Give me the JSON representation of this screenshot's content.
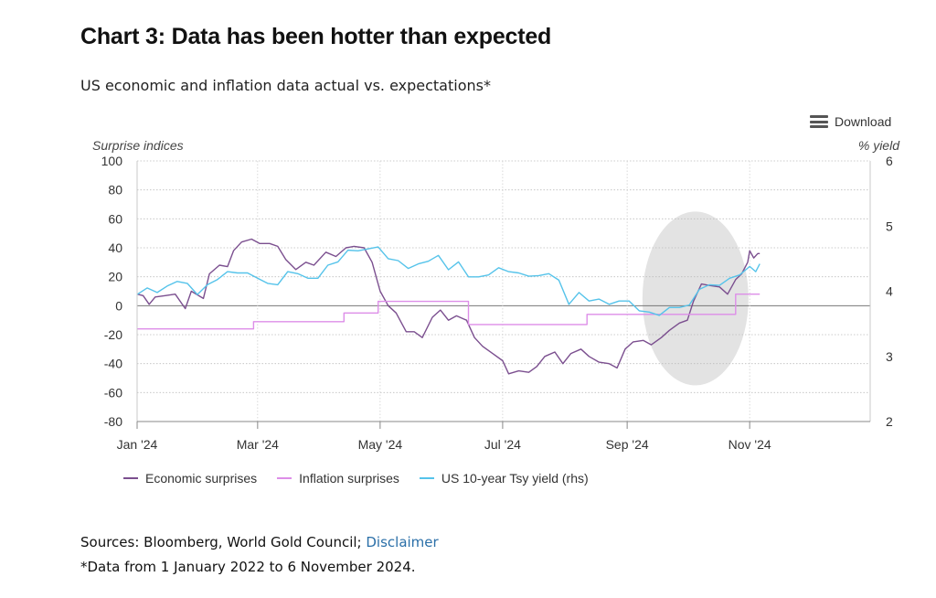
{
  "header": {
    "title": "Chart 3: Data has been hotter than expected",
    "subtitle": "US economic and inflation data actual vs. expectations*"
  },
  "toolbar": {
    "download_label": "Download",
    "download_icon": "menu-icon"
  },
  "footer": {
    "sources_prefix": "Sources: Bloomberg, World Gold Council; ",
    "disclaimer_link": "Disclaimer",
    "note": "*Data from 1 January 2022 to 6 November 2024."
  },
  "chart_data": {
    "type": "line",
    "left_axis": {
      "label": "Surprise indices",
      "range": [
        -80,
        100
      ],
      "ticks": [
        100,
        80,
        60,
        40,
        20,
        0,
        -20,
        -40,
        -60,
        -80
      ]
    },
    "right_axis": {
      "label": "% yield",
      "range": [
        2,
        6
      ],
      "ticks": [
        6,
        5,
        4,
        3,
        2
      ]
    },
    "x_axis": {
      "range": [
        "2024-01-01",
        "2024-12-31"
      ],
      "tick_labels": [
        "Jan '24",
        "Mar '24",
        "May '24",
        "Jul '24",
        "Sep '24",
        "Nov '24"
      ],
      "tick_dates": [
        "2024-01-01",
        "2024-03-01",
        "2024-05-01",
        "2024-07-01",
        "2024-09-01",
        "2024-11-01"
      ]
    },
    "grid": true,
    "legend_position": "bottom",
    "highlight": {
      "shape": "ellipse",
      "center": [
        "2024-10-05",
        5
      ],
      "color": "#e3e3e3"
    },
    "series": [
      {
        "name": "Economic surprises",
        "axis": "left",
        "color": "#7b4f8f",
        "points": [
          [
            "2024-01-01",
            8
          ],
          [
            "2024-01-04",
            7
          ],
          [
            "2024-01-07",
            1
          ],
          [
            "2024-01-10",
            6
          ],
          [
            "2024-01-15",
            7
          ],
          [
            "2024-01-20",
            8
          ],
          [
            "2024-01-25",
            -2
          ],
          [
            "2024-01-28",
            10
          ],
          [
            "2024-02-03",
            5
          ],
          [
            "2024-02-06",
            22
          ],
          [
            "2024-02-11",
            28
          ],
          [
            "2024-02-15",
            27
          ],
          [
            "2024-02-18",
            38
          ],
          [
            "2024-02-22",
            44
          ],
          [
            "2024-02-27",
            46
          ],
          [
            "2024-03-02",
            43
          ],
          [
            "2024-03-07",
            43
          ],
          [
            "2024-03-11",
            41
          ],
          [
            "2024-03-15",
            32
          ],
          [
            "2024-03-20",
            25
          ],
          [
            "2024-03-25",
            30
          ],
          [
            "2024-03-29",
            28
          ],
          [
            "2024-04-04",
            37
          ],
          [
            "2024-04-09",
            34
          ],
          [
            "2024-04-14",
            40
          ],
          [
            "2024-04-18",
            41
          ],
          [
            "2024-04-23",
            40
          ],
          [
            "2024-04-27",
            30
          ],
          [
            "2024-05-01",
            10
          ],
          [
            "2024-05-05",
            0
          ],
          [
            "2024-05-09",
            -5
          ],
          [
            "2024-05-14",
            -18
          ],
          [
            "2024-05-18",
            -18
          ],
          [
            "2024-05-22",
            -22
          ],
          [
            "2024-05-27",
            -8
          ],
          [
            "2024-05-31",
            -3
          ],
          [
            "2024-06-04",
            -10
          ],
          [
            "2024-06-08",
            -7
          ],
          [
            "2024-06-13",
            -10
          ],
          [
            "2024-06-17",
            -22
          ],
          [
            "2024-06-21",
            -28
          ],
          [
            "2024-06-26",
            -33
          ],
          [
            "2024-07-01",
            -38
          ],
          [
            "2024-07-04",
            -47
          ],
          [
            "2024-07-09",
            -45
          ],
          [
            "2024-07-14",
            -46
          ],
          [
            "2024-07-18",
            -42
          ],
          [
            "2024-07-22",
            -35
          ],
          [
            "2024-07-27",
            -32
          ],
          [
            "2024-07-31",
            -40
          ],
          [
            "2024-08-04",
            -33
          ],
          [
            "2024-08-09",
            -30
          ],
          [
            "2024-08-13",
            -35
          ],
          [
            "2024-08-18",
            -39
          ],
          [
            "2024-08-23",
            -40
          ],
          [
            "2024-08-27",
            -43
          ],
          [
            "2024-08-31",
            -30
          ],
          [
            "2024-09-04",
            -25
          ],
          [
            "2024-09-09",
            -24
          ],
          [
            "2024-09-13",
            -27
          ],
          [
            "2024-09-18",
            -22
          ],
          [
            "2024-09-22",
            -17
          ],
          [
            "2024-09-27",
            -12
          ],
          [
            "2024-10-01",
            -10
          ],
          [
            "2024-10-04",
            3
          ],
          [
            "2024-10-08",
            15
          ],
          [
            "2024-10-12",
            14
          ],
          [
            "2024-10-17",
            13
          ],
          [
            "2024-10-21",
            8
          ],
          [
            "2024-10-25",
            18
          ],
          [
            "2024-10-28",
            22
          ],
          [
            "2024-10-31",
            30
          ],
          [
            "2024-11-01",
            38
          ],
          [
            "2024-11-03",
            33
          ],
          [
            "2024-11-05",
            36
          ],
          [
            "2024-11-06",
            36
          ]
        ]
      },
      {
        "name": "Inflation surprises",
        "axis": "left",
        "color": "#dd8ee8",
        "points": [
          [
            "2024-01-01",
            -16
          ],
          [
            "2024-02-28",
            -16
          ],
          [
            "2024-02-28",
            -11
          ],
          [
            "2024-04-13",
            -11
          ],
          [
            "2024-04-13",
            -5
          ],
          [
            "2024-04-30",
            -5
          ],
          [
            "2024-04-30",
            3
          ],
          [
            "2024-06-14",
            3
          ],
          [
            "2024-06-14",
            -13
          ],
          [
            "2024-08-12",
            -13
          ],
          [
            "2024-08-12",
            -6
          ],
          [
            "2024-10-25",
            -6
          ],
          [
            "2024-10-25",
            8
          ],
          [
            "2024-11-06",
            8
          ]
        ]
      },
      {
        "name": "US 10-year Tsy yield (rhs)",
        "axis": "right",
        "color": "#55c3ea",
        "points": [
          [
            "2024-01-01",
            3.95
          ],
          [
            "2024-01-06",
            4.05
          ],
          [
            "2024-01-11",
            3.98
          ],
          [
            "2024-01-16",
            4.08
          ],
          [
            "2024-01-21",
            4.15
          ],
          [
            "2024-01-26",
            4.12
          ],
          [
            "2024-01-31",
            3.95
          ],
          [
            "2024-02-05",
            4.1
          ],
          [
            "2024-02-10",
            4.18
          ],
          [
            "2024-02-15",
            4.3
          ],
          [
            "2024-02-20",
            4.28
          ],
          [
            "2024-02-25",
            4.28
          ],
          [
            "2024-03-01",
            4.2
          ],
          [
            "2024-03-06",
            4.12
          ],
          [
            "2024-03-11",
            4.1
          ],
          [
            "2024-03-16",
            4.3
          ],
          [
            "2024-03-21",
            4.27
          ],
          [
            "2024-03-26",
            4.2
          ],
          [
            "2024-03-31",
            4.2
          ],
          [
            "2024-04-05",
            4.4
          ],
          [
            "2024-04-10",
            4.45
          ],
          [
            "2024-04-15",
            4.63
          ],
          [
            "2024-04-20",
            4.62
          ],
          [
            "2024-04-25",
            4.65
          ],
          [
            "2024-04-30",
            4.68
          ],
          [
            "2024-05-05",
            4.5
          ],
          [
            "2024-05-10",
            4.47
          ],
          [
            "2024-05-15",
            4.35
          ],
          [
            "2024-05-20",
            4.42
          ],
          [
            "2024-05-25",
            4.46
          ],
          [
            "2024-05-30",
            4.55
          ],
          [
            "2024-06-04",
            4.33
          ],
          [
            "2024-06-09",
            4.45
          ],
          [
            "2024-06-14",
            4.22
          ],
          [
            "2024-06-19",
            4.22
          ],
          [
            "2024-06-24",
            4.25
          ],
          [
            "2024-06-29",
            4.36
          ],
          [
            "2024-07-04",
            4.3
          ],
          [
            "2024-07-09",
            4.28
          ],
          [
            "2024-07-14",
            4.23
          ],
          [
            "2024-07-19",
            4.24
          ],
          [
            "2024-07-24",
            4.27
          ],
          [
            "2024-07-29",
            4.17
          ],
          [
            "2024-08-03",
            3.8
          ],
          [
            "2024-08-08",
            3.98
          ],
          [
            "2024-08-13",
            3.85
          ],
          [
            "2024-08-18",
            3.88
          ],
          [
            "2024-08-23",
            3.8
          ],
          [
            "2024-08-28",
            3.85
          ],
          [
            "2024-09-02",
            3.85
          ],
          [
            "2024-09-07",
            3.7
          ],
          [
            "2024-09-12",
            3.68
          ],
          [
            "2024-09-17",
            3.63
          ],
          [
            "2024-09-22",
            3.75
          ],
          [
            "2024-09-27",
            3.75
          ],
          [
            "2024-10-02",
            3.79
          ],
          [
            "2024-10-07",
            4.03
          ],
          [
            "2024-10-12",
            4.1
          ],
          [
            "2024-10-17",
            4.09
          ],
          [
            "2024-10-22",
            4.2
          ],
          [
            "2024-10-27",
            4.25
          ],
          [
            "2024-11-01",
            4.38
          ],
          [
            "2024-11-04",
            4.3
          ],
          [
            "2024-11-06",
            4.42
          ]
        ]
      }
    ]
  }
}
